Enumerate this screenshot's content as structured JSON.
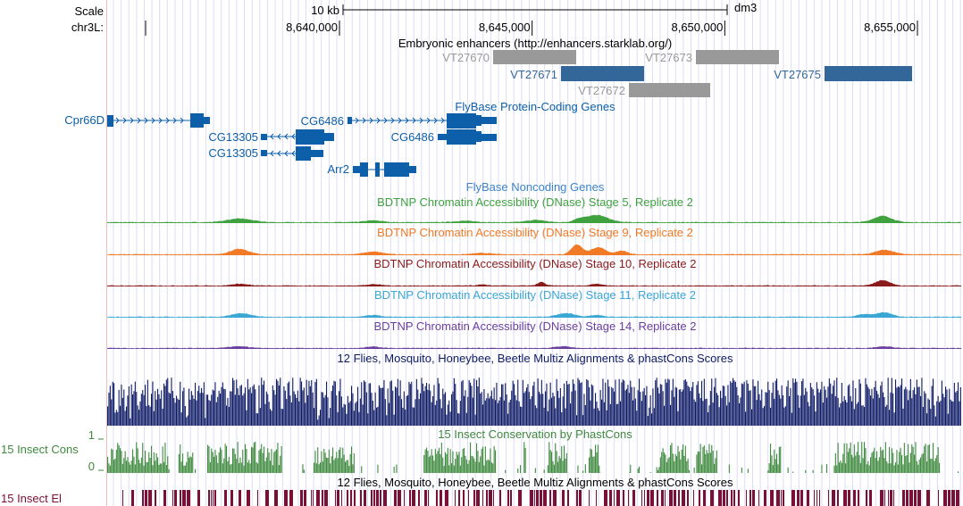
{
  "ruler": {
    "scale_label": "Scale",
    "chrom_label": "chr3L:",
    "scale_bar_label": "10 kb",
    "assembly": "dm3",
    "ticks": [
      {
        "pos": 8640000,
        "label": "8,640,000"
      },
      {
        "pos": 8645000,
        "label": "8,645,000"
      },
      {
        "pos": 8650000,
        "label": "8,650,000"
      },
      {
        "pos": 8655000,
        "label": "8,655,000"
      }
    ]
  },
  "enhancers": {
    "title": "Embryonic enhancers (http://enhancers.starklab.org/)",
    "items": [
      {
        "name": "VT27670",
        "color": "#999999"
      },
      {
        "name": "VT27671",
        "color": "#336699"
      },
      {
        "name": "VT27672",
        "color": "#999999"
      },
      {
        "name": "VT27673",
        "color": "#999999"
      },
      {
        "name": "VT27675",
        "color": "#336699"
      }
    ]
  },
  "genes": {
    "title": "FlyBase Protein-Coding Genes",
    "color": "#0C5FA8",
    "items": [
      {
        "name": "Cpr66D",
        "strand": "+"
      },
      {
        "name": "CG13305",
        "strand": "-"
      },
      {
        "name": "CG13305",
        "strand": "-"
      },
      {
        "name": "CG6486",
        "strand": "+"
      },
      {
        "name": "CG6486",
        "strand": "+"
      },
      {
        "name": "Arr2",
        "strand": "+"
      }
    ]
  },
  "noncoding": {
    "title": "FlyBase Noncoding Genes",
    "color": "#3C84C7"
  },
  "dnase": [
    {
      "title": "BDTNP Chromatin Accessibility (DNase) Stage 5, Replicate 2",
      "color": "#3FA23F"
    },
    {
      "title": "BDTNP Chromatin Accessibility (DNase) Stage 9, Replicate 2",
      "color": "#F07A26"
    },
    {
      "title": "BDTNP Chromatin Accessibility (DNase) Stage 10, Replicate 2",
      "color": "#8B1A1A"
    },
    {
      "title": "BDTNP Chromatin Accessibility (DNase) Stage 11, Replicate 2",
      "color": "#3AA7D5"
    },
    {
      "title": "BDTNP Chromatin Accessibility (DNase) Stage 14, Replicate 2",
      "color": "#6B3FA0"
    }
  ],
  "multiz": {
    "title": "12 Flies, Mosquito, Honeybee, Beetle Multiz Alignments & phastCons Scores",
    "color": "#0D1A66"
  },
  "phastcons": {
    "title": "15 Insect Conservation by PhastCons",
    "side_label": "15 Insect Cons",
    "ymax": "1",
    "ymin": "0",
    "color": "#3E8A3E"
  },
  "elements": {
    "title": "12 Flies, Mosquito, Honeybee, Beetle Multiz Alignments & phastCons Scores",
    "side_label": "15 Insect El",
    "color": "#7A1035"
  }
}
